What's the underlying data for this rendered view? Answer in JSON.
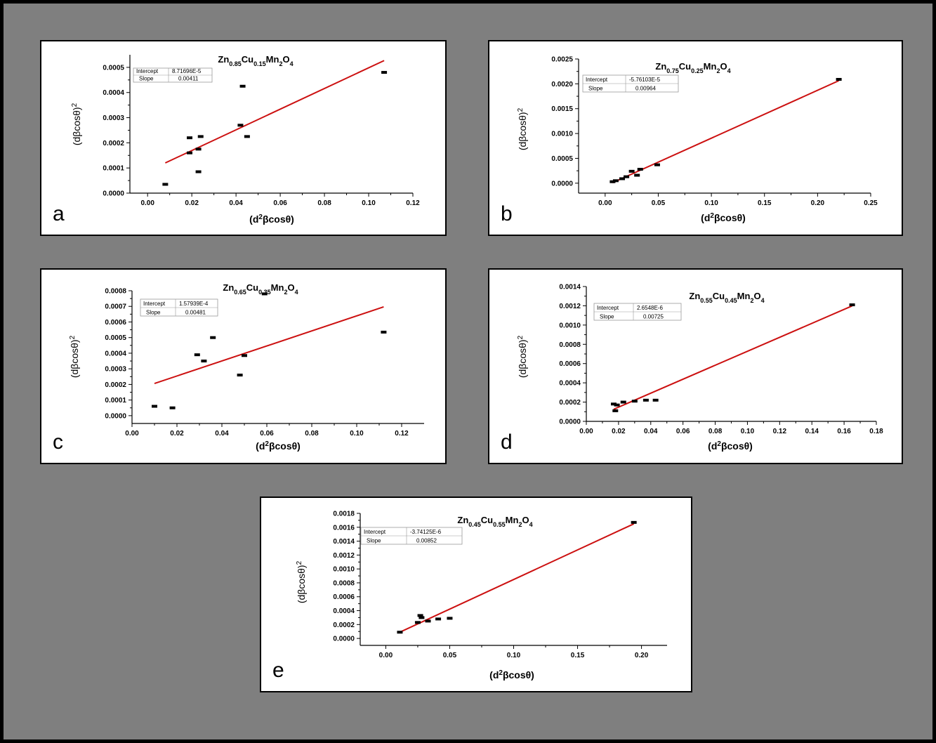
{
  "figure": {
    "background": "#7f7f7f",
    "border_color": "#000000",
    "fit_color": "#cc1010",
    "point_color": "#000000"
  },
  "chart_data": [
    {
      "panel": "a",
      "type": "scatter",
      "title_parts": [
        {
          "t": "Zn",
          "sub": false
        },
        {
          "t": "0.85",
          "sub": true
        },
        {
          "t": "Cu",
          "sub": false
        },
        {
          "t": "0.15",
          "sub": true
        },
        {
          "t": "Mn",
          "sub": false
        },
        {
          "t": "2",
          "sub": true
        },
        {
          "t": "O",
          "sub": false
        },
        {
          "t": "4",
          "sub": true
        }
      ],
      "xlabel_parts": [
        {
          "t": "(d",
          "sup": false
        },
        {
          "t": "2",
          "sup": true
        },
        {
          "t": "βcosθ)",
          "sup": false
        }
      ],
      "ylabel_parts": [
        {
          "t": "(dβcosθ)",
          "sup": false
        },
        {
          "t": "2",
          "sup": true
        }
      ],
      "fit_box": {
        "intercept_label": "Intercept",
        "intercept": "8.71696E-5",
        "slope_label": "Slope",
        "slope": "0.00411"
      },
      "xlim": [
        -0.008,
        0.12
      ],
      "ylim": [
        0,
        0.00055
      ],
      "xticks": [
        "0.00",
        "0.02",
        "0.04",
        "0.06",
        "0.08",
        "0.10",
        "0.12"
      ],
      "xtick_values": [
        0,
        0.02,
        0.04,
        0.06,
        0.08,
        0.1,
        0.12
      ],
      "yticks": [
        "0.0000",
        "0.0001",
        "0.0002",
        "0.0003",
        "0.0004",
        "0.0005"
      ],
      "ytick_values": [
        0,
        0.0001,
        0.0002,
        0.0003,
        0.0004,
        0.0005
      ],
      "points": [
        [
          0.008,
          3.5e-05
        ],
        [
          0.019,
          0.00016
        ],
        [
          0.019,
          0.00022
        ],
        [
          0.023,
          0.000175
        ],
        [
          0.023,
          8.5e-05
        ],
        [
          0.024,
          0.000225
        ],
        [
          0.042,
          0.00027
        ],
        [
          0.043,
          0.000425
        ],
        [
          0.045,
          0.000225
        ],
        [
          0.107,
          0.00048
        ]
      ],
      "fit": {
        "intercept": 8.71696e-05,
        "slope": 0.00411,
        "x_range": [
          0.008,
          0.107
        ]
      }
    },
    {
      "panel": "b",
      "type": "scatter",
      "title_parts": [
        {
          "t": "Zn",
          "sub": false
        },
        {
          "t": "0.75",
          "sub": true
        },
        {
          "t": "Cu",
          "sub": false
        },
        {
          "t": "0.25",
          "sub": true
        },
        {
          "t": "Mn",
          "sub": false
        },
        {
          "t": "2",
          "sub": true
        },
        {
          "t": "O",
          "sub": false
        },
        {
          "t": "4",
          "sub": true
        }
      ],
      "xlabel_parts": [
        {
          "t": "(d",
          "sup": false
        },
        {
          "t": "2",
          "sup": true
        },
        {
          "t": "βcosθ)",
          "sup": false
        }
      ],
      "ylabel_parts": [
        {
          "t": "(dβcosθ)",
          "sup": false
        },
        {
          "t": "2",
          "sup": true
        }
      ],
      "fit_box": {
        "intercept_label": "Intercept",
        "intercept": "-5.76103E-5",
        "slope_label": "Slope",
        "slope": "0.00964"
      },
      "xlim": [
        -0.025,
        0.25
      ],
      "ylim": [
        -0.0002,
        0.0025
      ],
      "xticks": [
        "0.00",
        "0.05",
        "0.10",
        "0.15",
        "0.20",
        "0.25"
      ],
      "xtick_values": [
        0,
        0.05,
        0.1,
        0.15,
        0.2,
        0.25
      ],
      "yticks": [
        "0.0000",
        "0.0005",
        "0.0010",
        "0.0015",
        "0.0020",
        "0.0025"
      ],
      "ytick_values": [
        0,
        0.0005,
        0.001,
        0.0015,
        0.002,
        0.0025
      ],
      "points": [
        [
          0.007,
          3e-05
        ],
        [
          0.01,
          5e-05
        ],
        [
          0.016,
          9e-05
        ],
        [
          0.02,
          0.00013
        ],
        [
          0.025,
          0.00024
        ],
        [
          0.03,
          0.00016
        ],
        [
          0.033,
          0.00028
        ],
        [
          0.049,
          0.00037
        ],
        [
          0.22,
          0.00209
        ]
      ],
      "fit": {
        "intercept": -5.76103e-05,
        "slope": 0.00964,
        "x_range": [
          0.007,
          0.22
        ]
      }
    },
    {
      "panel": "c",
      "type": "scatter",
      "title_parts": [
        {
          "t": "Zn",
          "sub": false
        },
        {
          "t": "0.65",
          "sub": true
        },
        {
          "t": "Cu",
          "sub": false
        },
        {
          "t": "0.35",
          "sub": true
        },
        {
          "t": "Mn",
          "sub": false
        },
        {
          "t": "2",
          "sub": true
        },
        {
          "t": "O",
          "sub": false
        },
        {
          "t": "4",
          "sub": true
        }
      ],
      "xlabel_parts": [
        {
          "t": "(d",
          "sup": false
        },
        {
          "t": "2",
          "sup": true
        },
        {
          "t": "βcosθ)",
          "sup": false
        }
      ],
      "ylabel_parts": [
        {
          "t": "(dβcosθ)",
          "sup": false
        },
        {
          "t": "2",
          "sup": true
        }
      ],
      "fit_box": {
        "intercept_label": "Intercept",
        "intercept": "1.57939E-4",
        "slope_label": "Slope",
        "slope": "0.00481"
      },
      "xlim": [
        0,
        0.13
      ],
      "ylim": [
        -5e-05,
        0.0008
      ],
      "xticks": [
        "0.00",
        "0.02",
        "0.04",
        "0.06",
        "0.08",
        "0.10",
        "0.12"
      ],
      "xtick_values": [
        0,
        0.02,
        0.04,
        0.06,
        0.08,
        0.1,
        0.12
      ],
      "yticks": [
        "0.0000",
        "0.0001",
        "0.0002",
        "0.0003",
        "0.0004",
        "0.0005",
        "0.0006",
        "0.0007",
        "0.0008"
      ],
      "ytick_values": [
        0,
        0.0001,
        0.0002,
        0.0003,
        0.0004,
        0.0005,
        0.0006,
        0.0007,
        0.0008
      ],
      "points": [
        [
          0.01,
          6e-05
        ],
        [
          0.018,
          5e-05
        ],
        [
          0.029,
          0.00039
        ],
        [
          0.032,
          0.00035
        ],
        [
          0.036,
          0.0005
        ],
        [
          0.048,
          0.00026
        ],
        [
          0.05,
          0.000385
        ],
        [
          0.059,
          0.00078
        ],
        [
          0.112,
          0.000535
        ]
      ],
      "fit": {
        "intercept": 0.000157939,
        "slope": 0.00481,
        "x_range": [
          0.01,
          0.112
        ]
      }
    },
    {
      "panel": "d",
      "type": "scatter",
      "title_parts": [
        {
          "t": "Zn",
          "sub": false
        },
        {
          "t": "0.55",
          "sub": true
        },
        {
          "t": "Cu",
          "sub": false
        },
        {
          "t": "0.45",
          "sub": true
        },
        {
          "t": "Mn",
          "sub": false
        },
        {
          "t": "2",
          "sub": true
        },
        {
          "t": "O",
          "sub": false
        },
        {
          "t": "4",
          "sub": true
        }
      ],
      "xlabel_parts": [
        {
          "t": "(d",
          "sup": false
        },
        {
          "t": "2",
          "sup": true
        },
        {
          "t": "βcosθ)",
          "sup": false
        }
      ],
      "ylabel_parts": [
        {
          "t": "(dβcosθ)",
          "sup": false
        },
        {
          "t": "2",
          "sup": true
        }
      ],
      "fit_box": {
        "intercept_label": "Intercept",
        "intercept": "2.6548E-6",
        "slope_label": "Slope",
        "slope": "0.00725"
      },
      "xlim": [
        0,
        0.18
      ],
      "ylim": [
        0,
        0.0014
      ],
      "xticks": [
        "0.00",
        "0.02",
        "0.04",
        "0.06",
        "0.08",
        "0.10",
        "0.12",
        "0.14",
        "0.16",
        "0.18"
      ],
      "xtick_values": [
        0,
        0.02,
        0.04,
        0.06,
        0.08,
        0.1,
        0.12,
        0.14,
        0.16,
        0.18
      ],
      "yticks": [
        "0.0000",
        "0.0002",
        "0.0004",
        "0.0006",
        "0.0008",
        "0.0010",
        "0.0012",
        "0.0014"
      ],
      "ytick_values": [
        0,
        0.0002,
        0.0004,
        0.0006,
        0.0008,
        0.001,
        0.0012,
        0.0014
      ],
      "points": [
        [
          0.017,
          0.00018
        ],
        [
          0.018,
          0.00011
        ],
        [
          0.019,
          0.00017
        ],
        [
          0.023,
          0.0002
        ],
        [
          0.03,
          0.00021
        ],
        [
          0.037,
          0.00022
        ],
        [
          0.043,
          0.00022
        ],
        [
          0.165,
          0.00121
        ]
      ],
      "fit": {
        "intercept": 2.6548e-06,
        "slope": 0.00725,
        "x_range": [
          0.017,
          0.165
        ]
      }
    },
    {
      "panel": "e",
      "type": "scatter",
      "title_parts": [
        {
          "t": "Zn",
          "sub": false
        },
        {
          "t": "0.45",
          "sub": true
        },
        {
          "t": "Cu",
          "sub": false
        },
        {
          "t": "0.55",
          "sub": true
        },
        {
          "t": "Mn",
          "sub": false
        },
        {
          "t": "2",
          "sub": true
        },
        {
          "t": "O",
          "sub": false
        },
        {
          "t": "4",
          "sub": true
        }
      ],
      "xlabel_parts": [
        {
          "t": "(d",
          "sup": false
        },
        {
          "t": "2",
          "sup": true
        },
        {
          "t": "βcosθ)",
          "sup": false
        }
      ],
      "ylabel_parts": [
        {
          "t": "(dβcosθ)",
          "sup": false
        },
        {
          "t": "2",
          "sup": true
        }
      ],
      "fit_box": {
        "intercept_label": "Intercept",
        "intercept": "-3.74125E-6",
        "slope_label": "Slope",
        "slope": "0.00852"
      },
      "xlim": [
        -0.02,
        0.22
      ],
      "ylim": [
        -0.0001,
        0.0018
      ],
      "xticks": [
        "0.00",
        "0.05",
        "0.10",
        "0.15",
        "0.20"
      ],
      "xtick_values": [
        0,
        0.05,
        0.1,
        0.15,
        0.2
      ],
      "yticks": [
        "0.0000",
        "0.0002",
        "0.0004",
        "0.0006",
        "0.0008",
        "0.0010",
        "0.0012",
        "0.0014",
        "0.0016",
        "0.0018"
      ],
      "ytick_values": [
        0,
        0.0002,
        0.0004,
        0.0006,
        0.0008,
        0.001,
        0.0012,
        0.0014,
        0.0016,
        0.0018
      ],
      "points": [
        [
          0.011,
          9e-05
        ],
        [
          0.025,
          0.00023
        ],
        [
          0.027,
          0.00033
        ],
        [
          0.028,
          0.0003
        ],
        [
          0.033,
          0.00025
        ],
        [
          0.041,
          0.00028
        ],
        [
          0.05,
          0.00029
        ],
        [
          0.194,
          0.00167
        ]
      ],
      "fit": {
        "intercept": -3.74125e-06,
        "slope": 0.00852,
        "x_range": [
          0.011,
          0.194
        ]
      }
    }
  ]
}
